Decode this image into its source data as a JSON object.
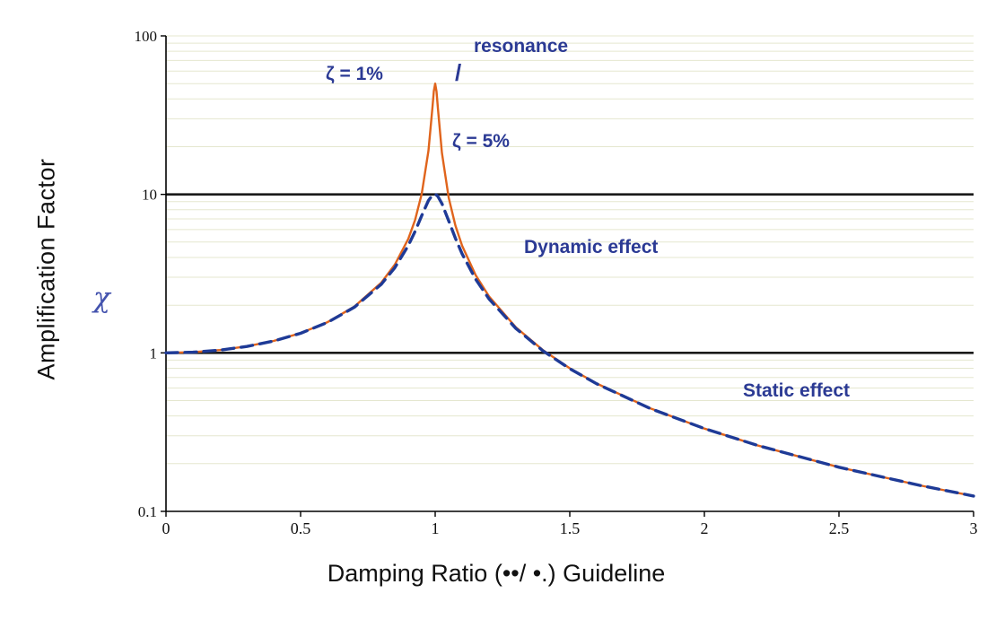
{
  "axes": {
    "y_label": "Amplification Factor",
    "y_symbol": "χ",
    "x_label": "Damping Ratio (••/ •.) Guideline",
    "y_ticks": [
      "100",
      "10",
      "1",
      "0.1"
    ],
    "x_ticks": [
      "0",
      "0.5",
      "1",
      "1.5",
      "2",
      "2.5",
      "3"
    ]
  },
  "annotations": {
    "zeta1": "ζ = 1%",
    "resonance": "resonance",
    "leader": "/",
    "zeta5": "ζ = 5%",
    "dynamic": "Dynamic effect",
    "static": "Static effect"
  },
  "colors": {
    "series_zeta1": "#e0641c",
    "series_zeta5": "#1e3a96",
    "annotation": "#2b3a94",
    "grid_minor": "#e5e7cf",
    "axis": "#000000",
    "reference_line": "#1a1a1a"
  },
  "chart_data": {
    "type": "line",
    "title": "",
    "xlabel": "Damping Ratio (••/ •.) Guideline",
    "ylabel": "Amplification Factor",
    "x_range": [
      0,
      3
    ],
    "y_range": [
      0.1,
      100
    ],
    "y_scale": "log",
    "grid": "horizontal-minor-log",
    "reference_lines_y": [
      1,
      10
    ],
    "x": [
      0,
      0.1,
      0.2,
      0.3,
      0.4,
      0.5,
      0.6,
      0.7,
      0.8,
      0.85,
      0.9,
      0.925,
      0.95,
      0.975,
      0.99,
      0.995,
      1.0,
      1.005,
      1.01,
      1.025,
      1.05,
      1.075,
      1.1,
      1.15,
      1.2,
      1.3,
      1.4,
      1.5,
      1.6,
      1.8,
      2.0,
      2.2,
      2.5,
      2.8,
      3.0
    ],
    "series": [
      {
        "name": "ζ = 1%",
        "style": "solid",
        "color": "#e0641c",
        "values": [
          1.0,
          1.01,
          1.042,
          1.099,
          1.19,
          1.333,
          1.562,
          1.96,
          2.777,
          3.603,
          5.24,
          6.87,
          10.07,
          18.84,
          35.6,
          44.9,
          50.0,
          44.5,
          35.1,
          18.31,
          9.56,
          6.37,
          4.74,
          3.1,
          2.27,
          1.449,
          1.042,
          0.8,
          0.641,
          0.446,
          0.333,
          0.26,
          0.19,
          0.146,
          0.125
        ]
      },
      {
        "name": "ζ = 5%",
        "style": "dashed",
        "color": "#1e3a96",
        "values": [
          1.0,
          1.01,
          1.041,
          1.098,
          1.189,
          1.33,
          1.556,
          1.943,
          2.712,
          3.446,
          4.756,
          5.83,
          7.35,
          9.15,
          9.9,
          10.0,
          10.0,
          9.9,
          9.71,
          8.75,
          6.82,
          5.29,
          4.22,
          2.92,
          2.19,
          1.424,
          1.031,
          0.794,
          0.638,
          0.445,
          0.333,
          0.26,
          0.19,
          0.146,
          0.125
        ]
      }
    ],
    "annotations": [
      "ζ = 1%",
      "resonance",
      "ζ = 5%",
      "Dynamic effect",
      "Static effect"
    ]
  }
}
